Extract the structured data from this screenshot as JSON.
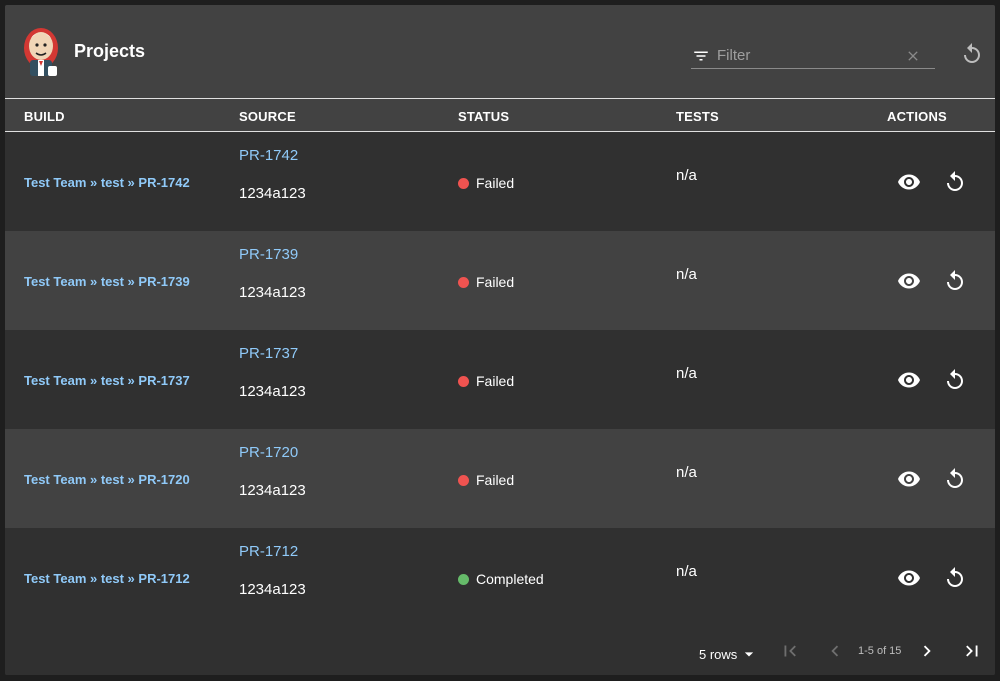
{
  "header": {
    "title": "Projects",
    "filter_placeholder": "Filter",
    "filter_value": ""
  },
  "columns": [
    "BUILD",
    "SOURCE",
    "STATUS",
    "TESTS",
    "ACTIONS"
  ],
  "rows": [
    {
      "build": "Test Team » test » PR-1742",
      "source": "PR-1742",
      "commit": "1234a123",
      "status": "Failed",
      "tests": "n/a"
    },
    {
      "build": "Test Team » test » PR-1739",
      "source": "PR-1739",
      "commit": "1234a123",
      "status": "Failed",
      "tests": "n/a"
    },
    {
      "build": "Test Team » test » PR-1737",
      "source": "PR-1737",
      "commit": "1234a123",
      "status": "Failed",
      "tests": "n/a"
    },
    {
      "build": "Test Team » test » PR-1720",
      "source": "PR-1720",
      "commit": "1234a123",
      "status": "Failed",
      "tests": "n/a"
    },
    {
      "build": "Test Team » test » PR-1712",
      "source": "PR-1712",
      "commit": "1234a123",
      "status": "Completed",
      "tests": "n/a"
    }
  ],
  "pagination": {
    "rows_per_page_label": "5 rows",
    "range_label": "1-5 of 15"
  },
  "colors": {
    "link": "#90caf9",
    "failed": "#ef5350",
    "completed": "#66bb6a"
  },
  "icons": {
    "logo": "jenkins-logo",
    "filter": "filter-list-icon",
    "clear": "close-icon",
    "refresh": "refresh-icon",
    "view": "eye-icon",
    "rerun": "replay-icon",
    "first_page": "first-page-icon",
    "prev_page": "chevron-left-icon",
    "next_page": "chevron-right-icon",
    "last_page": "last-page-icon"
  }
}
